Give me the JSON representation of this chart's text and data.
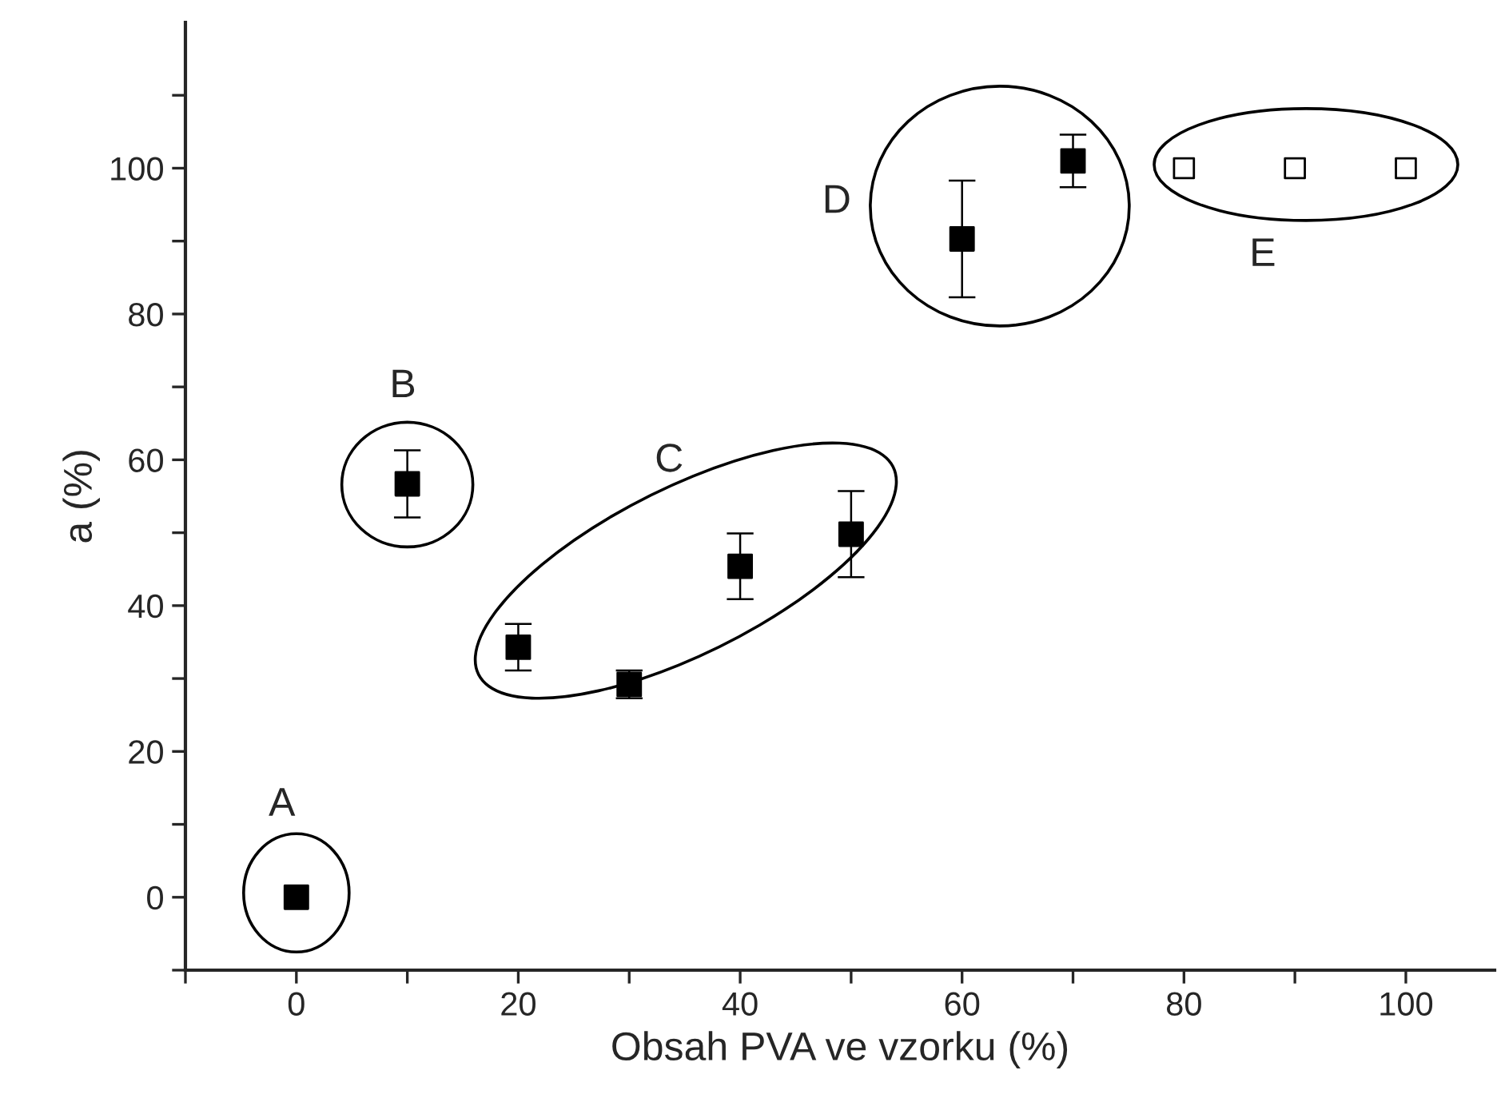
{
  "chart_data": {
    "type": "scatter",
    "xlabel": "Obsah PVA ve vzorku (%)",
    "ylabel": "a (%)",
    "series": [
      {
        "color": "#000000",
        "marker": "square",
        "x": [
          0,
          10,
          20,
          30,
          40,
          50,
          60,
          70
        ],
        "values": [
          0,
          56.7,
          34.3,
          29.2,
          45.4,
          49.8,
          90.3,
          101.0
        ],
        "errors": [
          null,
          4.6,
          3.2,
          1.9,
          4.5,
          5.9,
          8.0,
          3.6
        ]
      },
      {
        "color": "#000000",
        "marker": "square",
        "x": [
          80,
          90,
          100
        ],
        "values": [
          100,
          100,
          100
        ]
      }
    ],
    "xlim": [
      -10,
      108
    ],
    "ylim": [
      -10,
      120
    ],
    "xticks": [
      {
        "value": -10,
        "label": null
      },
      0,
      {
        "value": 10,
        "label": null
      },
      20,
      {
        "value": 30,
        "label": null
      },
      40,
      {
        "value": 50,
        "label": null
      },
      60,
      {
        "value": 70,
        "label": null
      },
      80,
      {
        "value": 90,
        "label": null
      },
      100
    ],
    "yticks": [
      {
        "value": -10,
        "label": null
      },
      0,
      {
        "value": 10,
        "label": null
      },
      20,
      {
        "value": 30,
        "label": null
      },
      40,
      {
        "value": 50,
        "label": null
      },
      60,
      {
        "value": 70,
        "label": null
      },
      80,
      {
        "value": 90,
        "label": null
      },
      100,
      {
        "value": 110,
        "label": null
      }
    ],
    "annotations": [
      "A",
      "B",
      "C",
      "D",
      "E"
    ],
    "grid": false
  }
}
